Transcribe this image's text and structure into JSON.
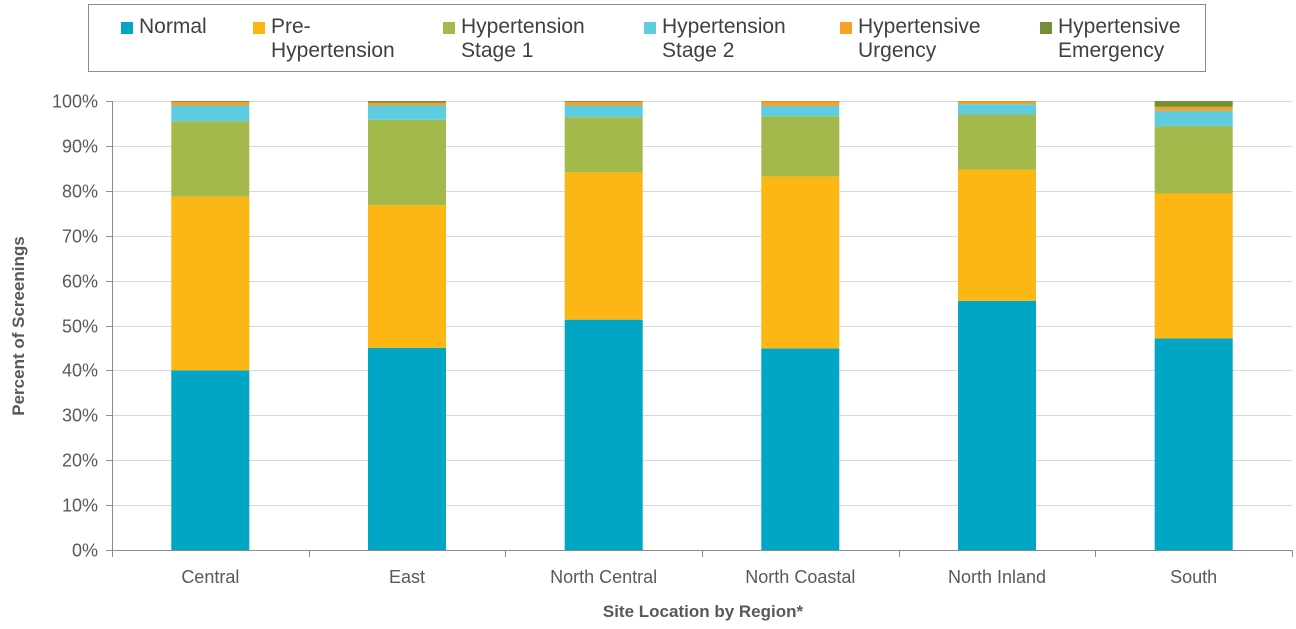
{
  "chart_data": {
    "type": "bar",
    "stacked": true,
    "title": "",
    "xlabel": "Site Location by Region*",
    "ylabel": "Percent of Screenings",
    "ylim": [
      0,
      100
    ],
    "yticks": [
      "0%",
      "10%",
      "20%",
      "30%",
      "40%",
      "50%",
      "60%",
      "70%",
      "80%",
      "90%",
      "100%"
    ],
    "grid": true,
    "legend_position": "top",
    "categories": [
      "Central",
      "East",
      "North Central",
      "North Coastal",
      "North Inland",
      "South"
    ],
    "series": [
      {
        "name": "Normal",
        "legend_label": "Normal",
        "color": "#00a6c4",
        "values": [
          40.0,
          45.0,
          51.3,
          44.9,
          55.5,
          47.1
        ]
      },
      {
        "name": "Pre-Hypertension",
        "legend_label": "Pre-\nHypertension",
        "color": "#fcb714",
        "values": [
          38.7,
          31.8,
          32.8,
          38.3,
          29.2,
          32.3
        ]
      },
      {
        "name": "Hypertension Stage 1",
        "legend_label": "Hypertension\nStage 1",
        "color": "#a4b94b",
        "values": [
          16.8,
          19.0,
          12.3,
          13.4,
          12.3,
          15.0
        ]
      },
      {
        "name": "Hypertension Stage 2",
        "legend_label": "Hypertension\nStage 2",
        "color": "#5ecde0",
        "values": [
          3.5,
          3.2,
          2.6,
          2.3,
          2.3,
          3.4
        ]
      },
      {
        "name": "Hypertensive Urgency",
        "legend_label": "Hypertensive\nUrgency",
        "color": "#f7a12a",
        "values": [
          0.8,
          0.6,
          0.8,
          1.0,
          0.6,
          0.9
        ]
      },
      {
        "name": "Hypertensive Emergency",
        "legend_label": "Hypertensive\nEmergency",
        "color": "#739036",
        "values": [
          0.2,
          0.4,
          0.2,
          0.1,
          0.1,
          1.3
        ]
      }
    ]
  }
}
